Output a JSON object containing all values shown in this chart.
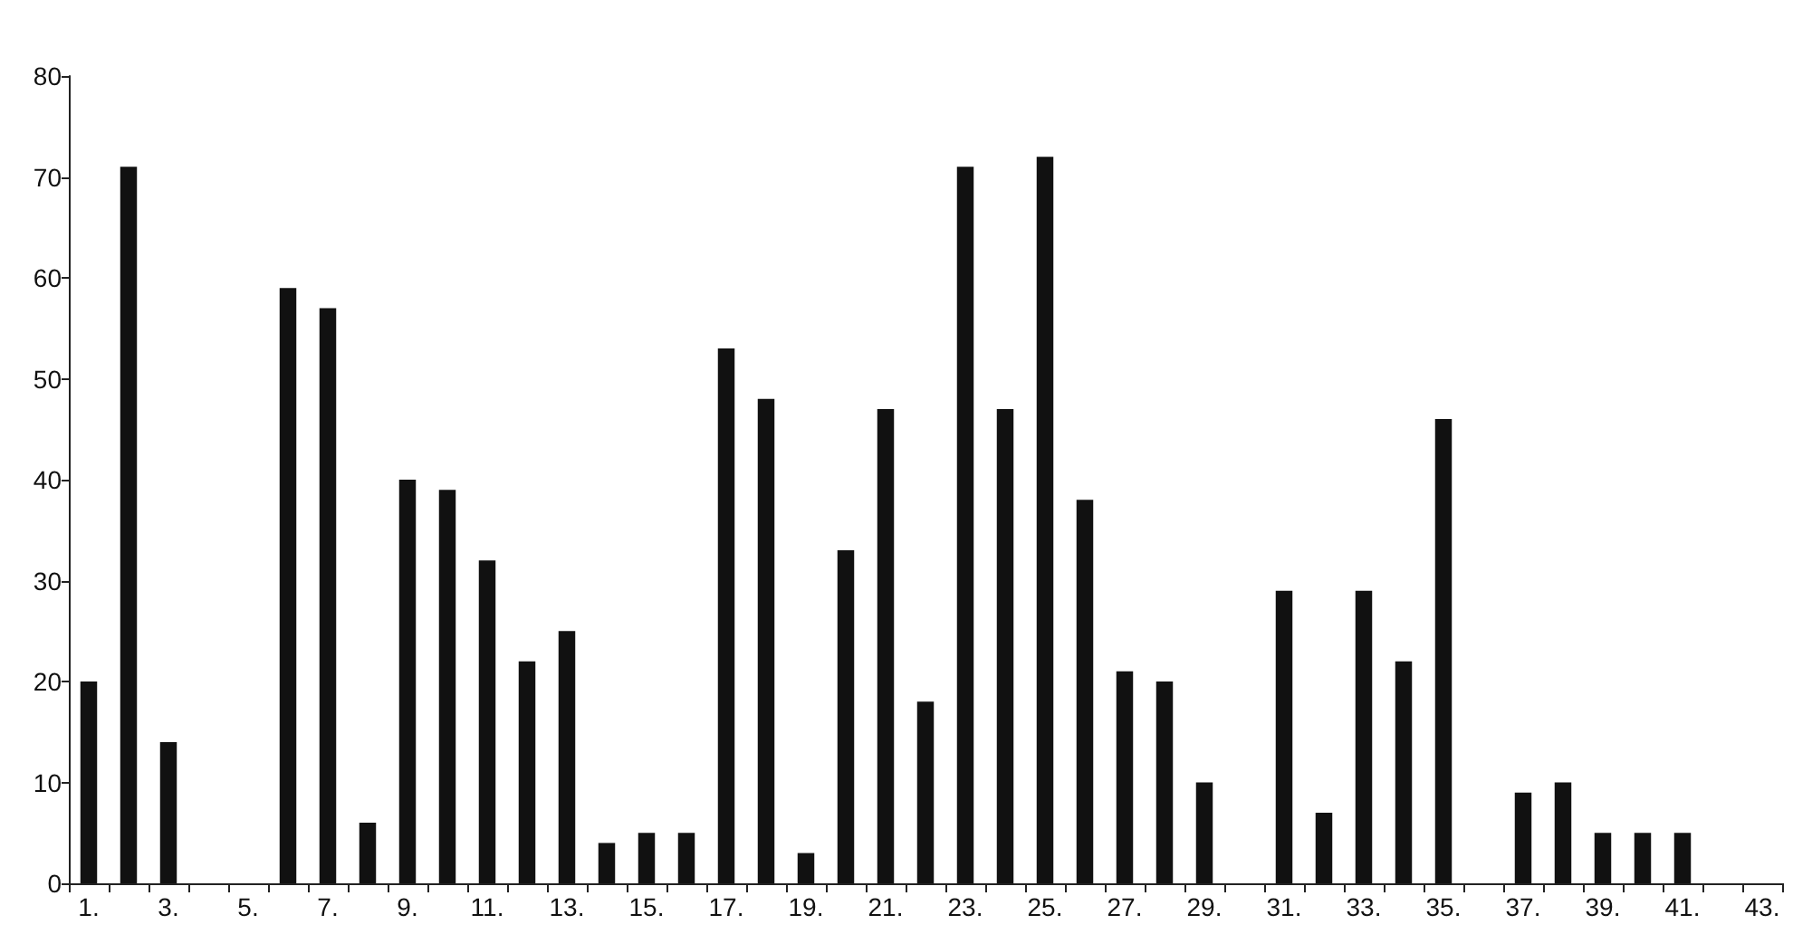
{
  "chart_data": {
    "type": "bar",
    "categories": [
      "1.",
      null,
      "3.",
      null,
      "5.",
      null,
      "7.",
      null,
      "9.",
      null,
      "11.",
      null,
      "13.",
      null,
      "15.",
      null,
      "17.",
      null,
      "19.",
      null,
      "21.",
      null,
      "23.",
      null,
      "25.",
      null,
      "27.",
      null,
      "29.",
      null,
      "31.",
      null,
      "33.",
      null,
      "35.",
      null,
      "37.",
      null,
      "39.",
      null,
      "41.",
      null,
      "43."
    ],
    "values": [
      20,
      71,
      14,
      0,
      0,
      59,
      57,
      6,
      40,
      39,
      32,
      22,
      25,
      4,
      5,
      5,
      53,
      48,
      3,
      33,
      47,
      18,
      71,
      47,
      72,
      38,
      21,
      20,
      10,
      0,
      29,
      7,
      29,
      22,
      46,
      0,
      9,
      10,
      5,
      5,
      5,
      0,
      0
    ],
    "color": "#111111",
    "ylim": [
      0,
      80
    ],
    "yticks": [
      0,
      10,
      20,
      30,
      40,
      50,
      60,
      70,
      80
    ],
    "grid": false
  }
}
